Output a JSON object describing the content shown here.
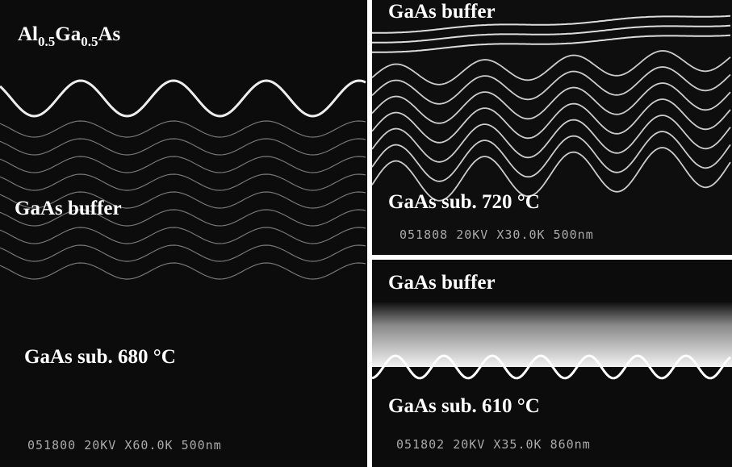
{
  "panels": [
    {
      "label_top": {
        "parts": [
          "Al",
          "0.5",
          "Ga",
          "0.5",
          "As"
        ]
      },
      "label_mid": "GaAs buffer",
      "label_bottom": "GaAs sub. 680 °C",
      "scale_text": "051800 20KV X60.0K 500nm"
    },
    {
      "label_top": "GaAs buffer",
      "label_bottom": "GaAs sub. 720 °C",
      "scale_text": "051808 20KV X30.0K 500nm"
    },
    {
      "label_top": "GaAs buffer",
      "label_bottom": "GaAs sub. 610 °C",
      "scale_text": "051802 20KV X35.0K 860nm"
    }
  ]
}
